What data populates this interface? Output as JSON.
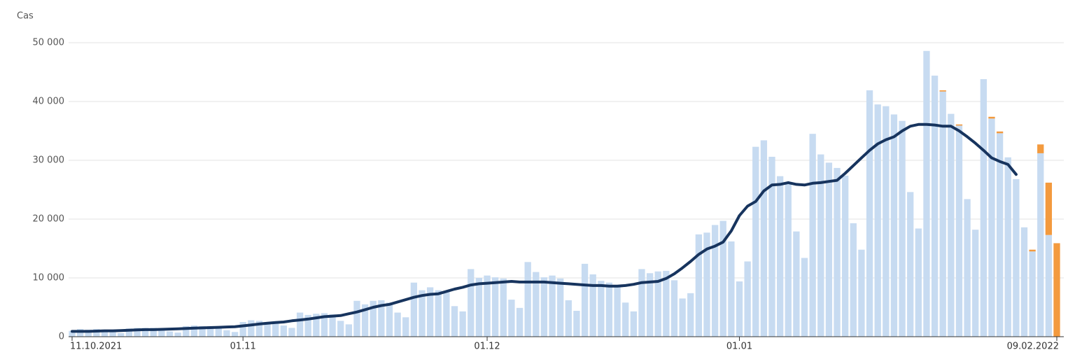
{
  "chart_data": {
    "type": "bar",
    "y_label": "Cas",
    "categories": [
      "11.10.2021",
      null,
      null,
      null,
      null,
      null,
      null,
      null,
      null,
      null,
      null,
      null,
      null,
      null,
      null,
      null,
      null,
      null,
      null,
      null,
      null,
      "01.11",
      null,
      null,
      null,
      null,
      null,
      null,
      null,
      null,
      null,
      null,
      null,
      null,
      null,
      null,
      null,
      null,
      null,
      null,
      null,
      null,
      null,
      null,
      null,
      null,
      null,
      null,
      null,
      null,
      null,
      "01.12",
      null,
      null,
      null,
      null,
      null,
      null,
      null,
      null,
      null,
      null,
      null,
      null,
      null,
      null,
      null,
      null,
      null,
      null,
      null,
      null,
      null,
      null,
      null,
      null,
      null,
      null,
      null,
      null,
      null,
      null,
      "01.01",
      null,
      null,
      null,
      null,
      null,
      null,
      null,
      null,
      null,
      null,
      null,
      null,
      null,
      null,
      null,
      null,
      null,
      null,
      null,
      null,
      null,
      null,
      null,
      null,
      null,
      null,
      null,
      null,
      null,
      null,
      null,
      null,
      null,
      null,
      null,
      null,
      null,
      null,
      "09.02.2022"
    ],
    "series": [
      {
        "color": "#c7dbf1",
        "values": [
          1000,
          1300,
          1200,
          1300,
          1200,
          800,
          600,
          1400,
          1500,
          1500,
          1500,
          1400,
          900,
          700,
          1800,
          1900,
          1800,
          1800,
          1700,
          1100,
          800,
          2500,
          2800,
          2700,
          2500,
          2300,
          1900,
          1500,
          4100,
          3700,
          3900,
          4000,
          3800,
          2700,
          2100,
          6100,
          5500,
          6100,
          6200,
          5800,
          4100,
          3300,
          9200,
          7900,
          8400,
          7900,
          7600,
          5200,
          4300,
          11500,
          10000,
          10400,
          10100,
          9900,
          6300,
          4900,
          12700,
          11000,
          10100,
          10400,
          9900,
          6200,
          4400,
          12400,
          10600,
          9500,
          9200,
          8600,
          5800,
          4300,
          11500,
          10800,
          11100,
          11200,
          9600,
          6500,
          7400,
          17400,
          17700,
          19000,
          19700,
          16200,
          9400,
          12800,
          32300,
          33400,
          30600,
          27300,
          26000,
          17900,
          13400,
          34500,
          31000,
          29600,
          28700,
          27400,
          19300,
          14800,
          41900,
          39500,
          39200,
          37800,
          36700,
          24600,
          18400,
          48600,
          44400,
          41700,
          37900,
          35900,
          23400,
          18200,
          43800,
          37100,
          34600,
          30500,
          26800,
          18600,
          14500,
          31200,
          17300,
          0
        ]
      },
      {
        "color": "#f39a3e",
        "values": [
          null,
          null,
          null,
          null,
          null,
          null,
          null,
          null,
          null,
          null,
          null,
          null,
          null,
          null,
          null,
          null,
          null,
          null,
          null,
          null,
          null,
          null,
          null,
          null,
          null,
          null,
          null,
          null,
          null,
          null,
          null,
          null,
          null,
          null,
          null,
          null,
          null,
          null,
          null,
          null,
          null,
          null,
          null,
          null,
          null,
          null,
          null,
          null,
          null,
          null,
          null,
          null,
          null,
          null,
          null,
          null,
          null,
          null,
          null,
          null,
          null,
          null,
          null,
          null,
          null,
          null,
          null,
          null,
          null,
          null,
          null,
          null,
          null,
          null,
          null,
          null,
          null,
          null,
          null,
          null,
          null,
          null,
          null,
          null,
          null,
          null,
          null,
          null,
          null,
          null,
          null,
          null,
          null,
          null,
          null,
          null,
          null,
          null,
          null,
          null,
          null,
          null,
          null,
          null,
          null,
          null,
          null,
          200,
          null,
          200,
          null,
          null,
          null,
          300,
          300,
          null,
          null,
          null,
          300,
          1500,
          8900,
          15900
        ]
      },
      {
        "type": "line",
        "color": "#17345e",
        "values": [
          900,
          900,
          900,
          950,
          1000,
          1000,
          1050,
          1100,
          1150,
          1200,
          1200,
          1250,
          1300,
          1350,
          1400,
          1450,
          1500,
          1550,
          1600,
          1650,
          1700,
          1850,
          2000,
          2150,
          2300,
          2400,
          2500,
          2700,
          2850,
          3000,
          3200,
          3400,
          3500,
          3600,
          3900,
          4200,
          4600,
          5000,
          5300,
          5500,
          5900,
          6300,
          6700,
          7000,
          7200,
          7300,
          7700,
          8100,
          8400,
          8800,
          9000,
          9100,
          9200,
          9300,
          9400,
          9300,
          9300,
          9300,
          9300,
          9200,
          9100,
          9000,
          8900,
          8800,
          8700,
          8700,
          8600,
          8600,
          8700,
          8900,
          9200,
          9300,
          9400,
          9900,
          10700,
          11700,
          12800,
          14000,
          14900,
          15400,
          16100,
          18000,
          20600,
          22200,
          23000,
          24800,
          25800,
          25900,
          26200,
          25900,
          25800,
          26100,
          26200,
          26400,
          26600,
          27800,
          29100,
          30400,
          31700,
          32800,
          33500,
          34000,
          35000,
          35800,
          36100,
          36100,
          36000,
          35800,
          35800,
          35000,
          34000,
          32900,
          31700,
          30400,
          29800,
          29300,
          27600,
          null,
          null,
          null,
          null,
          null
        ]
      }
    ],
    "ylim": [
      0,
      50000
    ],
    "yticks": [
      0,
      {
        "value": 10000,
        "label": "10 000"
      },
      {
        "value": 20000,
        "label": "20 000"
      },
      {
        "value": 30000,
        "label": "30 000"
      },
      {
        "value": 40000,
        "label": "40 000"
      },
      {
        "value": 50000,
        "label": "50 000"
      }
    ],
    "grid": true
  }
}
